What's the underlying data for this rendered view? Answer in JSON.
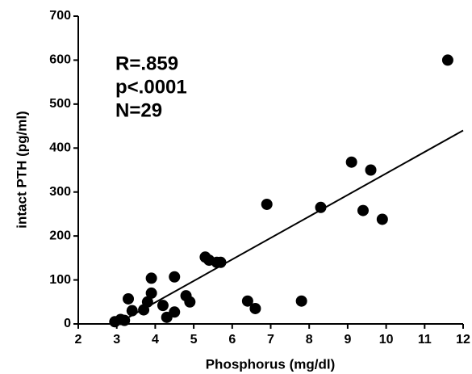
{
  "chart_data": {
    "type": "scatter",
    "x_label": "Phosphorus (mg/dl)",
    "y_label": "intact  PTH   (pg/ml)",
    "annotations": [
      "R=.859",
      "p<.0001",
      "N=29"
    ],
    "color": "#000000",
    "x": [
      11.6,
      9.1,
      9.6,
      6.9,
      8.3,
      9.4,
      9.9,
      5.3,
      5.4,
      5.6,
      5.7,
      4.5,
      3.9,
      3.9,
      4.8,
      4.9,
      3.3,
      3.8,
      4.2,
      3.7,
      3.4,
      4.5,
      4.3,
      3.1,
      2.95,
      3.2,
      6.4,
      6.6,
      7.8
    ],
    "y": [
      600,
      368,
      350,
      272,
      265,
      258,
      238,
      152,
      145,
      140,
      140,
      107,
      104,
      70,
      64,
      50,
      57,
      50,
      42,
      32,
      30,
      27,
      15,
      10,
      5,
      8,
      52,
      35,
      52
    ],
    "fit_line": {
      "x": [
        3.0,
        12
      ],
      "y": [
        0,
        440
      ]
    },
    "xlim": [
      2,
      12
    ],
    "xticks": [
      2,
      3,
      4,
      5,
      6,
      7,
      8,
      9,
      10,
      11,
      12
    ],
    "ylim": [
      0,
      700
    ],
    "yticks": [
      0,
      100,
      200,
      300,
      400,
      500,
      600,
      700
    ]
  }
}
